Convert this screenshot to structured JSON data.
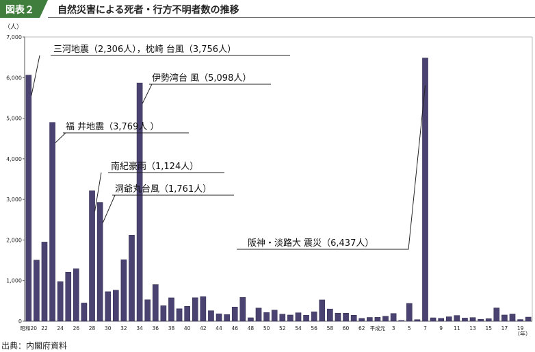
{
  "figure": {
    "label": "図表２",
    "title": "自然災害による死者・行方不明者数の推移",
    "source": "出典：内閣府資料"
  },
  "colors": {
    "bar": "#4a4270",
    "header_accent": "#3f7e3c"
  },
  "chart_data": {
    "type": "bar",
    "ylabel": "（人）",
    "xlabel": "（年）",
    "ylim": [
      0,
      7000
    ],
    "yticks": [
      "0",
      "1,000",
      "2,000",
      "3,000",
      "4,000",
      "5,000",
      "6,000",
      "7,000"
    ],
    "categories": [
      "昭和20",
      "21",
      "22",
      "23",
      "24",
      "25",
      "26",
      "27",
      "28",
      "29",
      "30",
      "31",
      "32",
      "33",
      "34",
      "35",
      "36",
      "37",
      "38",
      "39",
      "40",
      "41",
      "42",
      "43",
      "44",
      "45",
      "46",
      "47",
      "48",
      "49",
      "50",
      "51",
      "52",
      "53",
      "54",
      "55",
      "56",
      "57",
      "58",
      "59",
      "60",
      "61",
      "62",
      "63",
      "平成元",
      "2",
      "3",
      "4",
      "5",
      "6",
      "7",
      "8",
      "9",
      "10",
      "11",
      "12",
      "13",
      "14",
      "15",
      "16",
      "17",
      "18",
      "19",
      "20"
    ],
    "xtick_labels": [
      "昭和20",
      "22",
      "24",
      "26",
      "28",
      "30",
      "32",
      "34",
      "36",
      "38",
      "40",
      "42",
      "44",
      "46",
      "48",
      "50",
      "52",
      "54",
      "56",
      "58",
      "60",
      "62",
      "平成元",
      "3",
      "5",
      "7",
      "9",
      "11",
      "13",
      "15",
      "17",
      "19"
    ],
    "values": [
      6062,
      1504,
      1950,
      4897,
      975,
      1210,
      1291,
      449,
      3212,
      2926,
      727,
      765,
      1515,
      2120,
      5868,
      528,
      902,
      381,
      575,
      307,
      367,
      578,
      607,
      259,
      183,
      163,
      350,
      587,
      85,
      324,
      213,
      273,
      174,
      153,
      208,
      148,
      232,
      524,
      301,
      199,
      199,
      148,
      69,
      93,
      96,
      123,
      190,
      19,
      438,
      39,
      6482,
      84,
      71,
      109,
      141,
      78,
      90,
      48,
      62,
      327,
      153,
      177,
      41,
      101
    ],
    "annotations": [
      {
        "text": "三河地震（2,306人），枕崎 台風（3,756人）",
        "category": "昭和20"
      },
      {
        "text": "伊勢湾台 風（5,098人）",
        "category": "34"
      },
      {
        "text": "福 井地震（3,769人 ）",
        "category": "23"
      },
      {
        "text": "南紀豪雨（1,124人）",
        "category": "28"
      },
      {
        "text": "洞爺丸台風（1,761人）",
        "category": "29"
      },
      {
        "text": "阪神・淡路大 震災（6,437人）",
        "category": "7"
      }
    ]
  }
}
